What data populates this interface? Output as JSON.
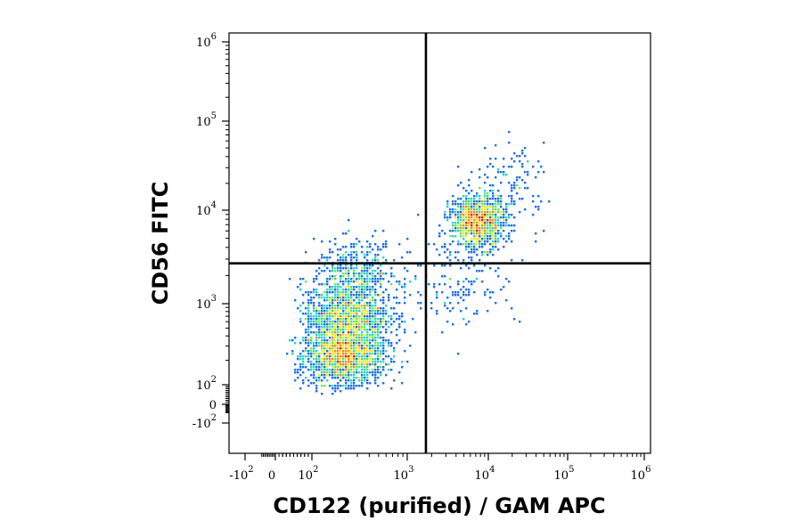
{
  "chart_data": {
    "type": "scatter",
    "xlabel": "CD122 (purified) / GAM APC",
    "ylabel": "CD56 FITC",
    "x_scale": "biexponential",
    "y_scale": "biexponential",
    "xlim": [
      -300,
      1000000
    ],
    "ylim": [
      -300,
      1000000
    ],
    "grid": false,
    "x_ticks": [
      {
        "value": -100,
        "base": "-10",
        "exp": "2"
      },
      {
        "value": 0,
        "base": "0",
        "exp": ""
      },
      {
        "value": 100,
        "base": "10",
        "exp": "2"
      },
      {
        "value": 1000,
        "base": "10",
        "exp": "3"
      },
      {
        "value": 10000,
        "base": "10",
        "exp": "4"
      },
      {
        "value": 100000,
        "base": "10",
        "exp": "5"
      },
      {
        "value": 1000000,
        "base": "10",
        "exp": "6"
      }
    ],
    "y_ticks": [
      {
        "value": -100,
        "base": "-10",
        "exp": "2"
      },
      {
        "value": 0,
        "base": "0",
        "exp": ""
      },
      {
        "value": 100,
        "base": "10",
        "exp": "2"
      },
      {
        "value": 1000,
        "base": "10",
        "exp": "3"
      },
      {
        "value": 10000,
        "base": "10",
        "exp": "4"
      },
      {
        "value": 100000,
        "base": "10",
        "exp": "5"
      },
      {
        "value": 1000000,
        "base": "10",
        "exp": "6"
      }
    ],
    "quadrant_gates": {
      "x": 1700,
      "y": 2700
    },
    "populations": [
      {
        "center_x": 220,
        "center_y": 220,
        "spread_x": 0.22,
        "spread_y": 0.17,
        "count": 1500
      },
      {
        "center_x": 230,
        "center_y": 700,
        "spread_x": 0.22,
        "spread_y": 0.2,
        "count": 1200
      },
      {
        "center_x": 300,
        "center_y": 2000,
        "spread_x": 0.22,
        "spread_y": 0.18,
        "count": 450
      },
      {
        "center_x": 7500,
        "center_y": 7500,
        "spread_x": 0.17,
        "spread_y": 0.14,
        "count": 1200
      },
      {
        "center_x": 4000,
        "center_y": 1700,
        "spread_x": 0.4,
        "spread_y": 0.25,
        "count": 160
      },
      {
        "center_x": 20000,
        "center_y": 20000,
        "spread_x": 0.22,
        "spread_y": 0.22,
        "count": 120
      }
    ],
    "density_colors": [
      "#0000b4",
      "#1e6ee6",
      "#28d2c8",
      "#64e664",
      "#f0e628",
      "#f08c14",
      "#dc1e14"
    ]
  }
}
